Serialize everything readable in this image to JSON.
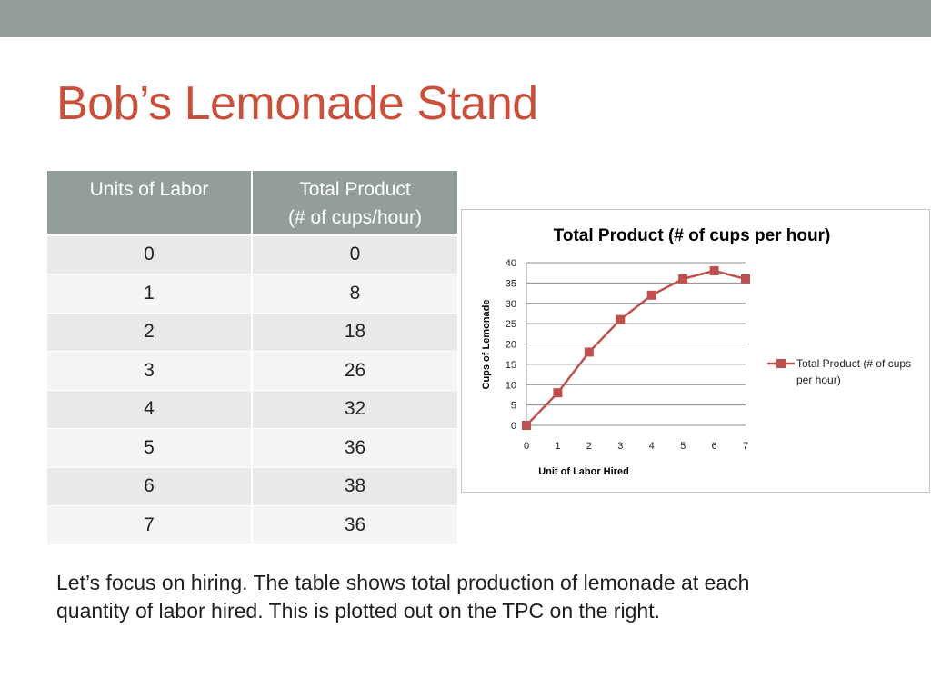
{
  "slide": {
    "title": "Bob’s Lemonade Stand",
    "caption_line1": "Let’s focus on hiring.  The table shows total production of lemonade at each",
    "caption_line2": "quantity of labor hired.  This is plotted out on the TPC on the right."
  },
  "table": {
    "headers": [
      "Units of Labor",
      "Total Product",
      "(# of cups/hour)"
    ],
    "rows": [
      [
        "0",
        "0"
      ],
      [
        "1",
        "8"
      ],
      [
        "2",
        "18"
      ],
      [
        "3",
        "26"
      ],
      [
        "4",
        "32"
      ],
      [
        "5",
        "36"
      ],
      [
        "6",
        "38"
      ],
      [
        "7",
        "36"
      ]
    ]
  },
  "colors": {
    "topbar": "#919f98",
    "title": "#c9503a",
    "series": "#c0504d"
  },
  "chart_data": {
    "type": "line",
    "title": "Total Product (# of cups per hour)",
    "xlabel": "Unit of Labor Hired",
    "ylabel": "Cups of Lemonade",
    "x": [
      0,
      1,
      2,
      3,
      4,
      5,
      6,
      7
    ],
    "series": [
      {
        "name": "Total Product (# of cups per hour)",
        "legend_line1": "Total Product (# of cups",
        "legend_line2": "per hour)",
        "values": [
          0,
          8,
          18,
          26,
          32,
          36,
          38,
          36
        ]
      }
    ],
    "xticks": [
      "0",
      "1",
      "2",
      "3",
      "4",
      "5",
      "6",
      "7"
    ],
    "yticks": [
      "0",
      "5",
      "10",
      "15",
      "20",
      "25",
      "30",
      "35",
      "40"
    ],
    "ylim": [
      0,
      40
    ],
    "grid": true,
    "legend": "right",
    "marker": "square"
  }
}
